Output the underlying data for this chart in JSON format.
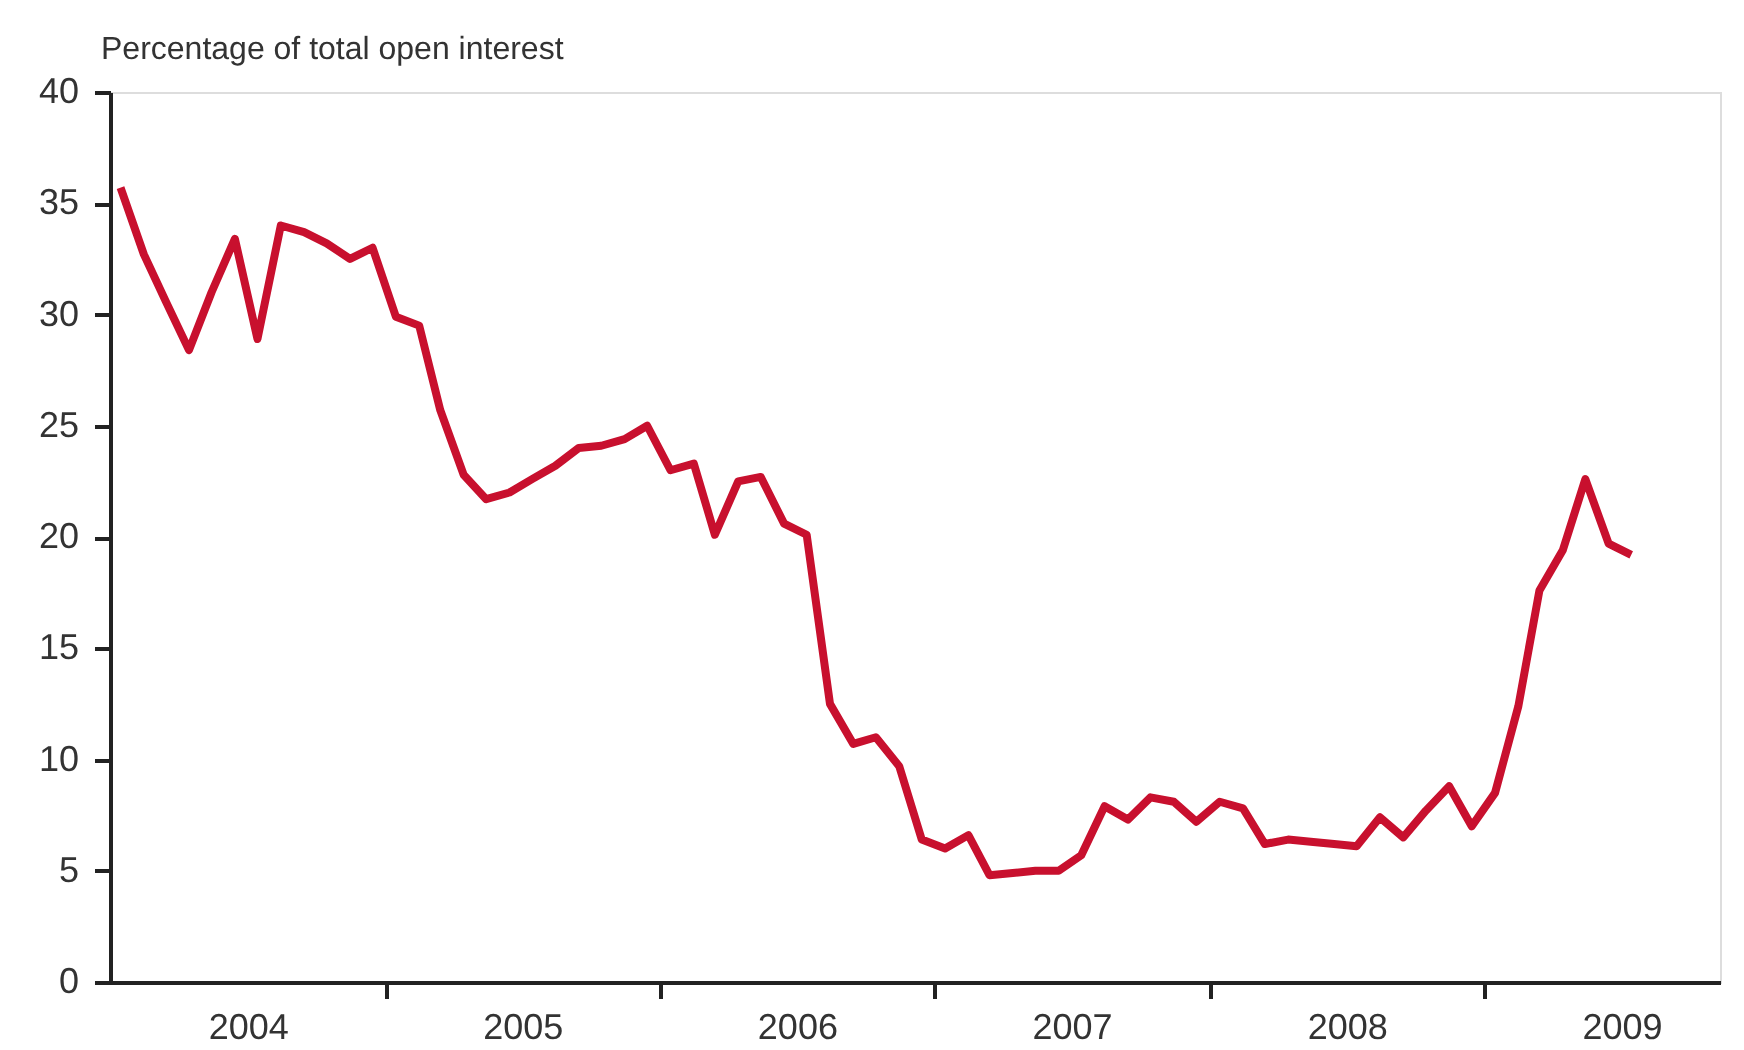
{
  "chart_data": {
    "type": "line",
    "ylabel": "Percentage of total open interest",
    "x": [
      "2004-01-15",
      "2004-02-15",
      "2004-03-15",
      "2004-04-15",
      "2004-05-15",
      "2004-06-15",
      "2004-07-15",
      "2004-08-15",
      "2004-09-15",
      "2004-10-15",
      "2004-11-15",
      "2004-12-15",
      "2005-01-15",
      "2005-02-15",
      "2005-03-15",
      "2005-04-15",
      "2005-05-15",
      "2005-06-15",
      "2005-07-15",
      "2005-08-15",
      "2005-09-15",
      "2005-10-15",
      "2005-11-15",
      "2005-12-15",
      "2006-01-15",
      "2006-02-15",
      "2006-03-15",
      "2006-04-15",
      "2006-05-15",
      "2006-06-15",
      "2006-07-15",
      "2006-08-15",
      "2006-09-15",
      "2006-10-15",
      "2006-11-15",
      "2006-12-15",
      "2007-01-15",
      "2007-02-15",
      "2007-03-15",
      "2007-04-15",
      "2007-05-15",
      "2007-06-15",
      "2007-07-15",
      "2007-08-15",
      "2007-09-15",
      "2007-10-15",
      "2007-11-15",
      "2007-12-15",
      "2008-01-15",
      "2008-02-15",
      "2008-03-15",
      "2008-04-15",
      "2008-05-15",
      "2008-06-15",
      "2008-07-15",
      "2008-08-15",
      "2008-09-15",
      "2008-10-15",
      "2008-11-15",
      "2008-12-15",
      "2009-01-15",
      "2009-02-15",
      "2009-03-15",
      "2009-04-15",
      "2009-05-15",
      "2009-06-15",
      "2009-07-15"
    ],
    "series": [
      {
        "color": "#c8102e",
        "values": [
          35.7,
          32.7,
          30.6,
          28.4,
          31.0,
          33.4,
          28.9,
          34.0,
          33.7,
          33.2,
          32.5,
          33.0,
          29.9,
          29.5,
          25.7,
          22.8,
          21.7,
          22.0,
          22.6,
          23.2,
          24.0,
          24.1,
          24.4,
          25.0,
          23.0,
          23.3,
          20.1,
          22.5,
          22.7,
          20.6,
          20.1,
          12.5,
          10.7,
          11.0,
          9.7,
          6.4,
          6.0,
          6.6,
          4.8,
          4.9,
          5.0,
          5.0,
          5.7,
          7.9,
          7.3,
          8.3,
          8.1,
          7.2,
          8.1,
          7.8,
          6.2,
          6.4,
          6.3,
          6.2,
          6.1,
          7.4,
          6.5,
          7.7,
          8.8,
          7.0,
          8.5,
          12.4,
          17.6,
          19.4,
          22.6,
          19.7,
          19.2
        ]
      }
    ],
    "xlim": [
      "2004-01-01",
      "2009-11-10"
    ],
    "xticks": [
      {
        "value": "2004-07-02",
        "label": "2004"
      },
      {
        "value": "2005-01-01",
        "label": null
      },
      {
        "value": "2005-07-02",
        "label": "2005"
      },
      {
        "value": "2006-01-01",
        "label": null
      },
      {
        "value": "2006-07-02",
        "label": "2006"
      },
      {
        "value": "2007-01-01",
        "label": null
      },
      {
        "value": "2007-07-02",
        "label": "2007"
      },
      {
        "value": "2008-01-01",
        "label": null
      },
      {
        "value": "2008-07-02",
        "label": "2008"
      },
      {
        "value": "2009-01-01",
        "label": null
      },
      {
        "value": "2009-07-02",
        "label": "2009"
      }
    ],
    "ylim": [
      0,
      40
    ],
    "yticks": [
      0,
      5,
      10,
      15,
      20,
      25,
      30,
      35,
      40
    ],
    "grid": false,
    "marker": "none",
    "line_style": "solid"
  }
}
